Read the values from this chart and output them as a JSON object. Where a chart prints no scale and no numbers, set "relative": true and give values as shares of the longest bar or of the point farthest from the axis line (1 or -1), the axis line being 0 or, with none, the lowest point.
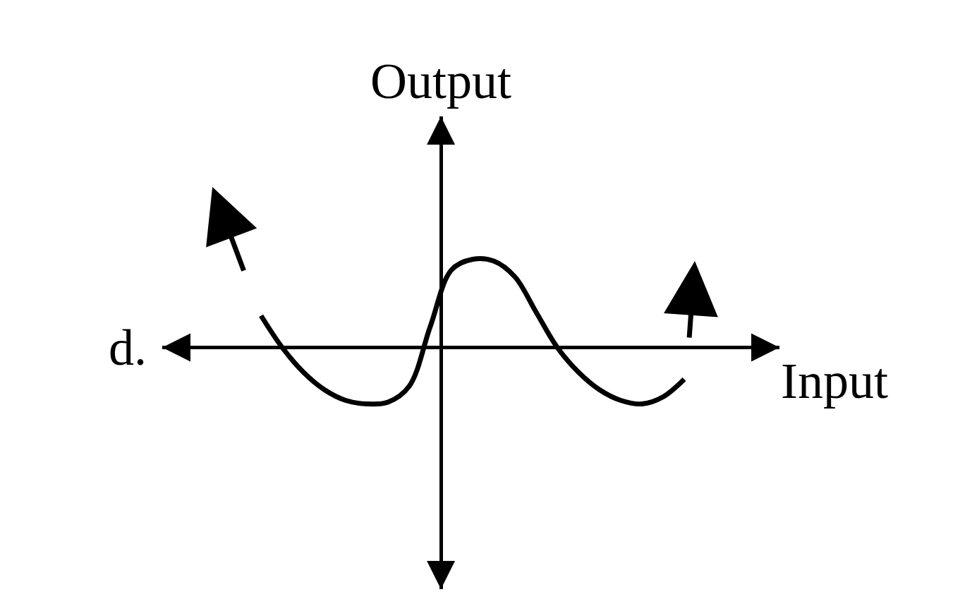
{
  "chart_data": {
    "type": "line",
    "relative": true,
    "xlabel": "Input",
    "ylabel": "Output",
    "annotations": [
      "d."
    ],
    "categories": [
      null,
      null,
      null,
      null,
      null,
      null,
      null,
      null,
      null,
      null,
      null,
      null,
      null,
      null,
      null,
      null,
      null,
      null,
      null,
      null,
      null
    ],
    "series": [
      {
        "color": "#000000",
        "values": [
          0.36,
          0,
          -0.28,
          -0.48,
          -0.6,
          -0.64,
          -0.62,
          -0.44,
          0.24,
          0.88,
          1,
          0.98,
          0.8,
          0.4,
          0,
          -0.28,
          -0.48,
          -0.6,
          -0.64,
          -0.56,
          -0.36
        ]
      }
    ],
    "marker": "none",
    "line_style": "solid"
  }
}
